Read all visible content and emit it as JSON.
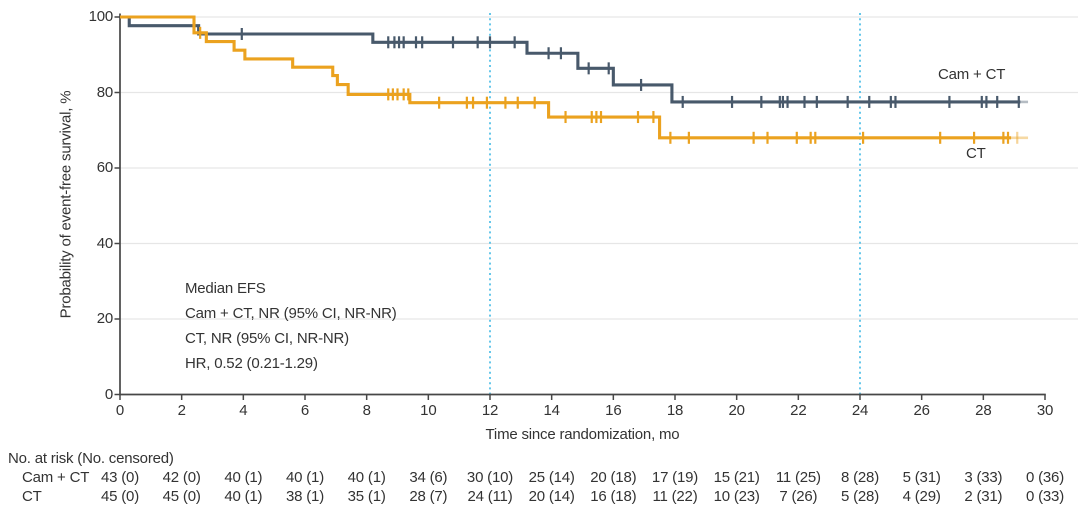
{
  "chart_data": {
    "type": "line",
    "subtype": "kaplan-meier-step",
    "title": "",
    "xlabel": "Time since randomization, mo",
    "ylabel": "Probability of event-free survival, %",
    "xlim": [
      0,
      30
    ],
    "ylim": [
      0,
      100
    ],
    "x_ticks": [
      0,
      2,
      4,
      6,
      8,
      10,
      12,
      14,
      16,
      18,
      20,
      22,
      24,
      26,
      28,
      30
    ],
    "y_ticks": [
      0,
      20,
      40,
      60,
      80,
      100
    ],
    "grid": "horizontal",
    "legend_position": "end-of-curve",
    "reference_lines_x": [
      12,
      24
    ],
    "annotation_lines": [
      "Median EFS",
      "Cam + CT, NR (95% CI, NR-NR)",
      "CT, NR (95% CI, NR-NR)",
      "HR, 0.52 (0.21-1.29)"
    ],
    "series": [
      {
        "name": "Cam + CT",
        "color": "#48596B",
        "steps": [
          [
            0,
            100
          ],
          [
            0.3,
            97.7
          ],
          [
            2.55,
            95.5
          ],
          [
            8.2,
            93.3
          ],
          [
            13.2,
            90.4
          ],
          [
            14.85,
            86.4
          ],
          [
            16.0,
            82.0
          ],
          [
            17.9,
            77.5
          ]
        ],
        "solid_end": 29.2,
        "faint_end": 29.45,
        "censor_times": [
          3.95,
          8.7,
          8.9,
          9.05,
          9.2,
          9.6,
          9.8,
          10.8,
          11.6,
          12.0,
          12.8,
          13.9,
          14.3,
          15.2,
          15.85,
          16.9,
          18.25,
          19.85,
          20.8,
          21.4,
          21.5,
          21.65,
          22.2,
          22.6,
          23.6,
          24.3,
          25.0,
          25.15,
          26.9,
          27.95,
          28.1,
          28.45,
          29.15
        ],
        "faint_censor_times": []
      },
      {
        "name": "CT",
        "color": "#EBA21F",
        "steps": [
          [
            0,
            100
          ],
          [
            2.4,
            95.8
          ],
          [
            2.8,
            93.5
          ],
          [
            3.7,
            91.2
          ],
          [
            4.05,
            88.9
          ],
          [
            5.6,
            86.7
          ],
          [
            6.9,
            84.5
          ],
          [
            7.05,
            82.1
          ],
          [
            7.4,
            79.5
          ],
          [
            9.4,
            77.3
          ],
          [
            13.9,
            73.5
          ],
          [
            17.5,
            68.0
          ]
        ],
        "solid_end": 28.9,
        "faint_end": 29.45,
        "censor_times": [
          2.6,
          8.7,
          8.85,
          9.0,
          9.2,
          9.35,
          10.35,
          11.25,
          11.45,
          11.9,
          12.5,
          12.9,
          13.45,
          14.45,
          15.3,
          15.45,
          15.6,
          16.8,
          17.3,
          17.85,
          18.45,
          20.55,
          21.0,
          21.95,
          22.4,
          22.55,
          24.1,
          26.6,
          27.7,
          28.65,
          28.8
        ],
        "faint_censor_times": [
          29.1
        ]
      }
    ]
  },
  "axes_text": {
    "x_label": "Time since randomization, mo",
    "y_label": "Probability of event-free survival, %"
  },
  "curve_labels": {
    "cam_ct": "Cam + CT",
    "ct": "CT"
  },
  "annotation": {
    "line1": "Median EFS",
    "line2": "Cam + CT, NR (95% CI, NR-NR)",
    "line3": "CT, NR (95% CI, NR-NR)",
    "line4": "HR, 0.52 (0.21-1.29)"
  },
  "risk_table": {
    "header": "No. at risk (No. censored)",
    "rows": [
      {
        "label": "Cam + CT",
        "values": [
          "43 (0)",
          "42 (0)",
          "40 (1)",
          "40 (1)",
          "40 (1)",
          "34 (6)",
          "30 (10)",
          "25 (14)",
          "20 (18)",
          "17 (19)",
          "15 (21)",
          "11 (25)",
          "8 (28)",
          "5 (31)",
          "3 (33)",
          "0 (36)"
        ]
      },
      {
        "label": "CT",
        "values": [
          "45 (0)",
          "45 (0)",
          "40 (1)",
          "38 (1)",
          "35 (1)",
          "28 (7)",
          "24 (11)",
          "20 (14)",
          "16 (18)",
          "11 (22)",
          "10 (23)",
          "7 (26)",
          "5 (28)",
          "4 (29)",
          "2 (31)",
          "0 (33)"
        ]
      }
    ]
  },
  "colors": {
    "cam_ct": "#48596B",
    "ct": "#EBA21F",
    "reference_line": "#56C1E8",
    "grid": "#E6E6E6",
    "axis": "#474747",
    "text": "#333333"
  }
}
